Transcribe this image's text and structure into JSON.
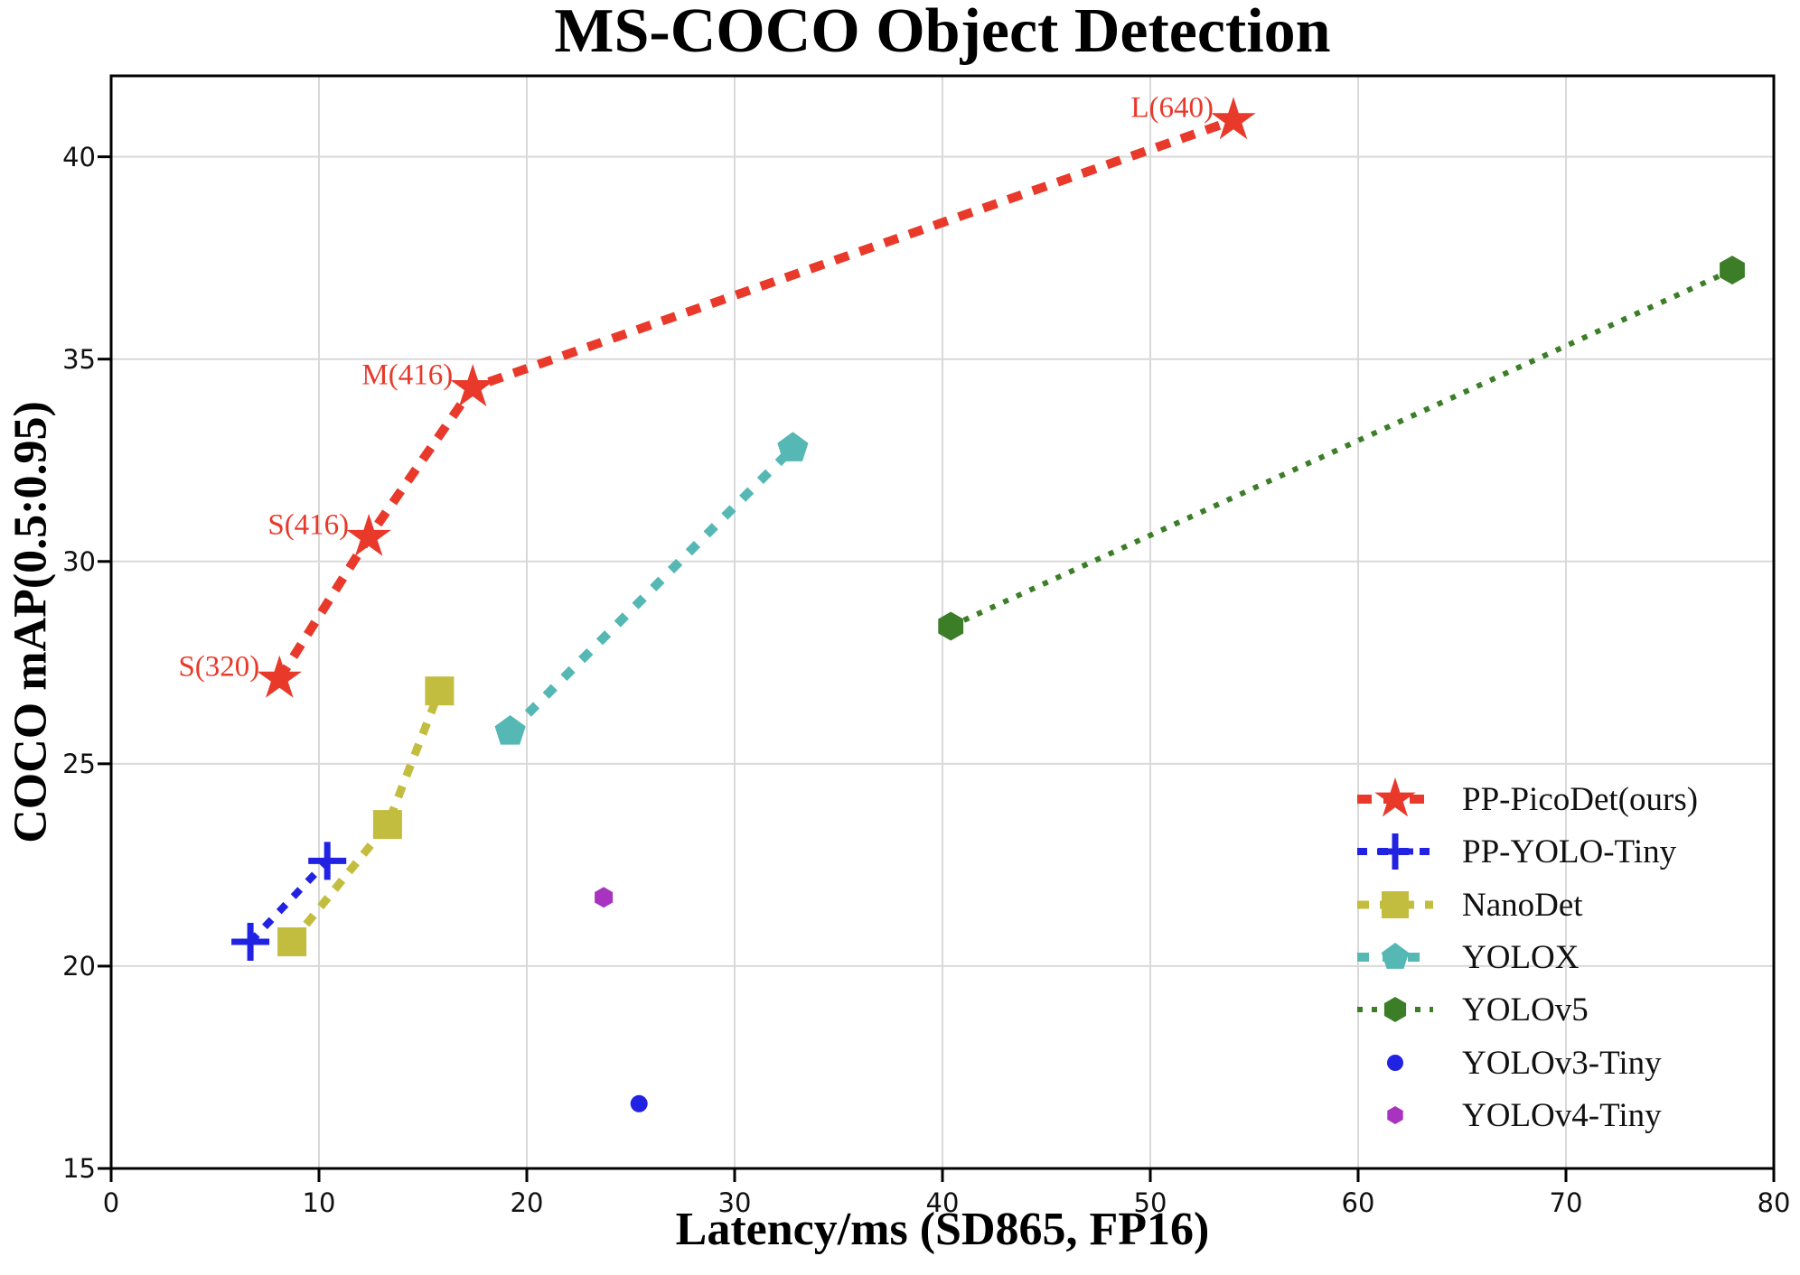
{
  "title": "MS-COCO Object Detection",
  "chart_data": {
    "type": "line",
    "title": "MS-COCO Object Detection",
    "xlabel": "Latency/ms (SD865, FP16)",
    "ylabel": "COCO mAP(0.5:0.95)",
    "xlim": [
      0,
      80
    ],
    "ylim": [
      15,
      42
    ],
    "xticks": [
      0,
      10,
      20,
      30,
      40,
      50,
      60,
      70,
      80
    ],
    "yticks": [
      15,
      20,
      25,
      30,
      35,
      40
    ],
    "grid": true,
    "grid_color": "#d9d9d9",
    "legend_position": "lower right",
    "series": [
      {
        "name": "PP-PicoDet(ours)",
        "key": "pp-picodet",
        "color": "#e8392b",
        "marker": "star",
        "marker_size": 26,
        "line": "dashed",
        "line_width": 10,
        "dash": "16 13",
        "points": [
          {
            "x": 8.1,
            "y": 27.1,
            "label": "S(320)"
          },
          {
            "x": 12.4,
            "y": 30.6,
            "label": "S(416)"
          },
          {
            "x": 17.4,
            "y": 34.3,
            "label": "M(416)"
          },
          {
            "x": 54.0,
            "y": 40.9,
            "label": "L(640)"
          }
        ]
      },
      {
        "name": "PP-YOLO-Tiny",
        "key": "pp-yolo-tiny",
        "color": "#2222e2",
        "marker": "plus",
        "marker_size": 21,
        "line": "dashed",
        "line_width": 8,
        "dash": "11 12",
        "points": [
          {
            "x": 6.7,
            "y": 20.6
          },
          {
            "x": 10.4,
            "y": 22.6
          }
        ]
      },
      {
        "name": "NanoDet",
        "key": "nanodet",
        "color": "#c3bd3f",
        "marker": "square",
        "marker_size": 16,
        "line": "dashed",
        "line_width": 9,
        "dash": "13 12",
        "points": [
          {
            "x": 8.7,
            "y": 20.6
          },
          {
            "x": 13.3,
            "y": 23.5
          },
          {
            "x": 15.8,
            "y": 26.8
          }
        ]
      },
      {
        "name": "YOLOX",
        "key": "yolox",
        "color": "#55b8b4",
        "marker": "pentagon",
        "marker_size": 18,
        "line": "dashed",
        "line_width": 10,
        "dash": "13 15",
        "points": [
          {
            "x": 19.2,
            "y": 25.8
          },
          {
            "x": 32.8,
            "y": 32.8
          }
        ]
      },
      {
        "name": "YOLOv5",
        "key": "yolov5",
        "color": "#3b7e27",
        "marker": "hexagon",
        "marker_size": 16,
        "line": "dotted",
        "line_width": 6,
        "dash": "6 10",
        "points": [
          {
            "x": 40.4,
            "y": 28.4
          },
          {
            "x": 78.0,
            "y": 37.2
          }
        ]
      },
      {
        "name": "YOLOv3-Tiny",
        "key": "yolov3-tiny",
        "color": "#2222e2",
        "marker": "circle",
        "marker_size": 9.5,
        "line": "none",
        "line_width": 0,
        "dash": "",
        "points": [
          {
            "x": 25.4,
            "y": 16.6
          }
        ]
      },
      {
        "name": "YOLOv4-Tiny",
        "key": "yolov4-tiny",
        "color": "#a833c0",
        "marker": "hexagon",
        "marker_size": 11.5,
        "line": "none",
        "line_width": 0,
        "dash": "",
        "points": [
          {
            "x": 23.7,
            "y": 21.7
          }
        ]
      }
    ]
  },
  "annotation_color": "#e8392b"
}
